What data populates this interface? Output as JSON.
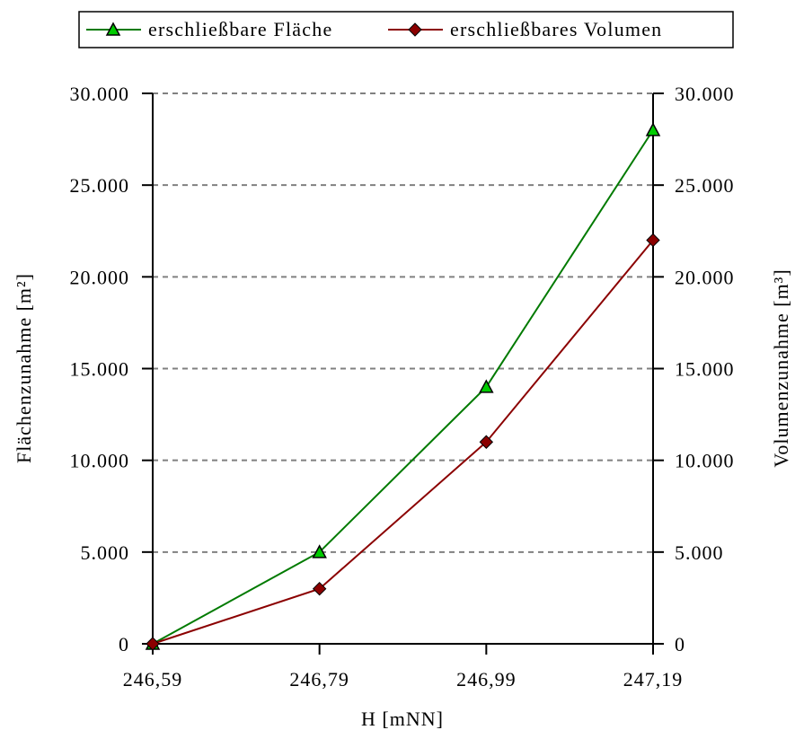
{
  "chart_data": {
    "type": "line",
    "x": [
      "246,59",
      "246,79",
      "246,99",
      "247,19"
    ],
    "xlabel": "H [mNN]",
    "ylabel_left": "Flächenzunahme [m²]",
    "ylabel_right": "Volumenzunahme [m³]",
    "ylim": [
      0,
      30000
    ],
    "yticks": [
      "0",
      "5.000",
      "10.000",
      "15.000",
      "20.000",
      "25.000",
      "30.000"
    ],
    "grid": "horizontal dashed",
    "legend_position": "top",
    "series": [
      {
        "name": "erschließbare Fläche",
        "axis": "left",
        "marker": "triangle",
        "line_color": "#007a00",
        "marker_color": "#00cc00",
        "values": [
          0,
          5000,
          14000,
          28000
        ]
      },
      {
        "name": "erschließbares Volumen",
        "axis": "right",
        "marker": "diamond",
        "line_color": "#8b0000",
        "marker_color": "#8b0000",
        "values": [
          0,
          3000,
          11000,
          22000
        ]
      }
    ]
  }
}
